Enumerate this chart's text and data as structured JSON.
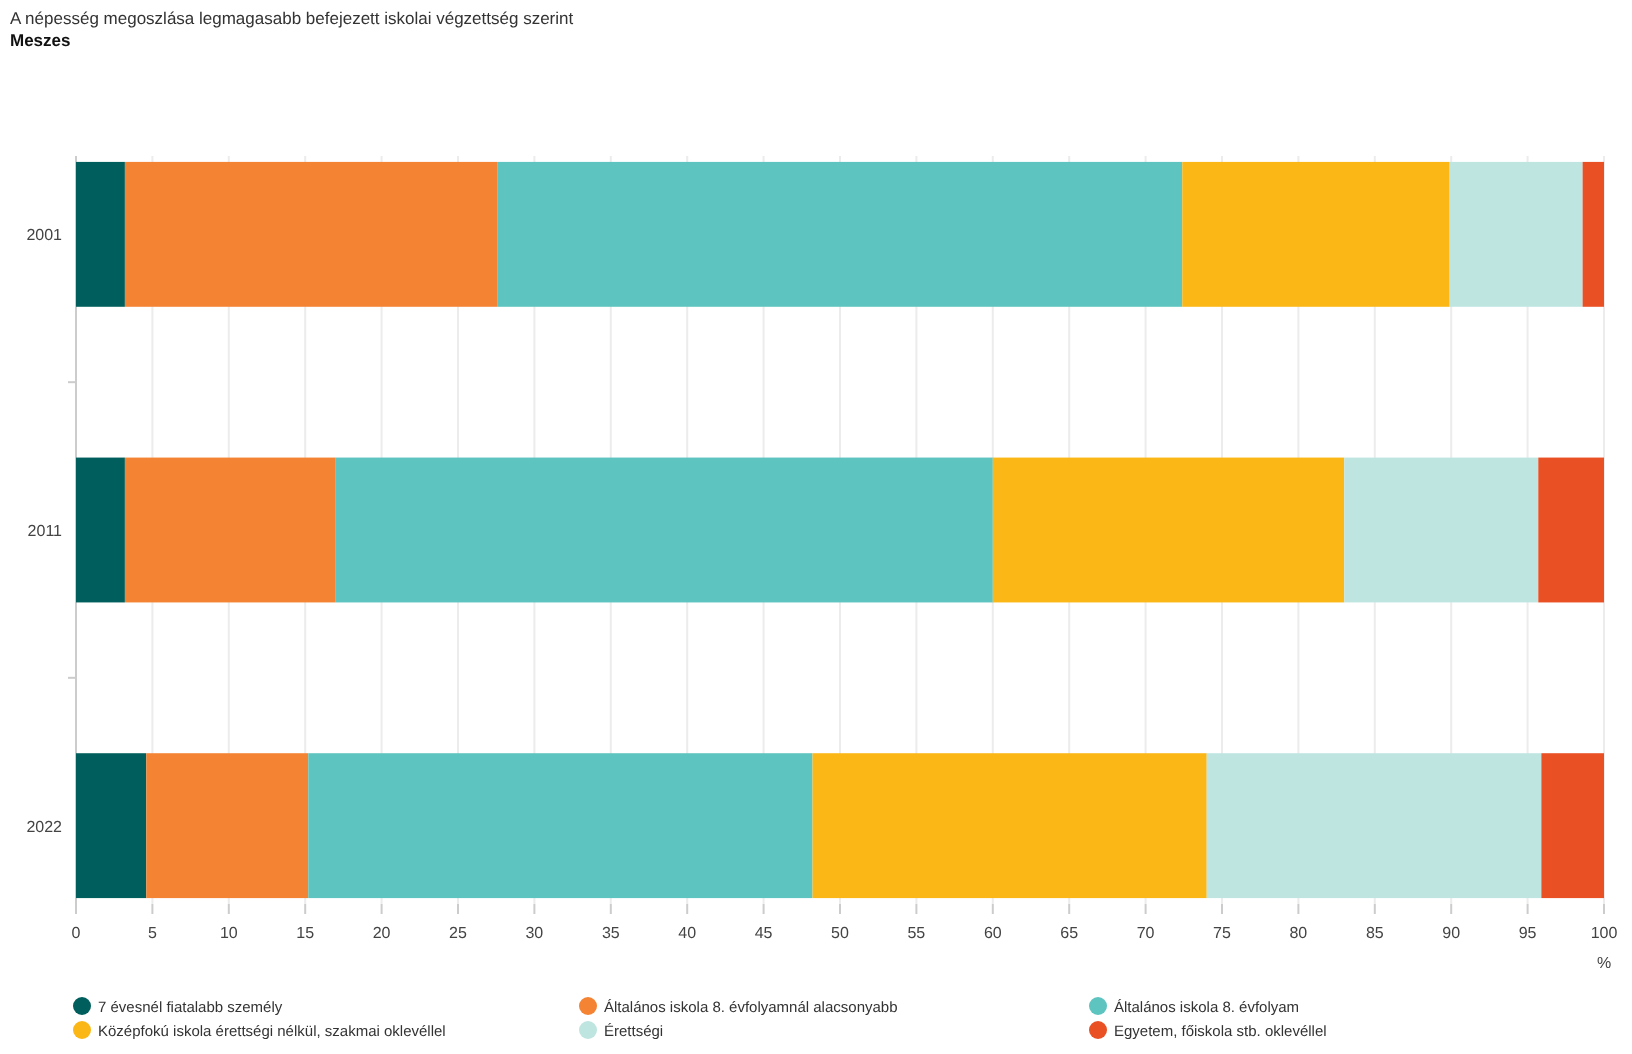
{
  "chart_data": {
    "type": "bar",
    "orientation": "horizontal",
    "stacked": true,
    "title": "A népesség megoszlása legmagasabb befejezett iskolai végzettség szerint",
    "subtitle": "Meszes",
    "xlabel": "%",
    "categories": [
      "2001",
      "2011",
      "2022"
    ],
    "series": [
      {
        "name": "7 évesnél fiatalabb személy",
        "color": "#005f5c",
        "values": [
          3.2,
          3.2,
          4.6
        ]
      },
      {
        "name": "Általános iskola 8. évfolyamnál alacsonyabb",
        "color": "#f48334",
        "values": [
          24.4,
          13.8,
          10.6
        ]
      },
      {
        "name": "Általános iskola 8. évfolyam",
        "color": "#5dc4bf",
        "values": [
          44.8,
          43.0,
          33.0
        ]
      },
      {
        "name": "Középfokú iskola érettségi nélkül, szakmai oklevéllel",
        "color": "#fbb716",
        "values": [
          17.5,
          23.0,
          25.8
        ]
      },
      {
        "name": "Érettségi",
        "color": "#bfe5e1",
        "values": [
          8.7,
          12.7,
          21.9
        ]
      },
      {
        "name": "Egyetem, főiskola stb. oklevéllel",
        "color": "#e95024",
        "values": [
          1.4,
          4.3,
          4.1
        ]
      }
    ],
    "xlim": [
      0,
      100
    ],
    "xticks": [
      0,
      5,
      10,
      15,
      20,
      25,
      30,
      35,
      40,
      45,
      50,
      55,
      60,
      65,
      70,
      75,
      80,
      85,
      90,
      95,
      100
    ],
    "grid": "x",
    "legend": "bottom"
  }
}
